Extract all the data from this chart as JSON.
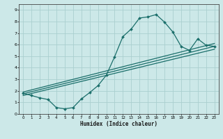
{
  "xlabel": "Humidex (Indice chaleur)",
  "bg_color": "#cce8e8",
  "grid_color": "#aacfcf",
  "line_color": "#1a6e6a",
  "xlim": [
    -0.5,
    23.5
  ],
  "ylim": [
    0,
    9.5
  ],
  "xticks": [
    0,
    1,
    2,
    3,
    4,
    5,
    6,
    7,
    8,
    9,
    10,
    11,
    12,
    13,
    14,
    15,
    16,
    17,
    18,
    19,
    20,
    21,
    22,
    23
  ],
  "yticks": [
    0,
    1,
    2,
    3,
    4,
    5,
    6,
    7,
    8,
    9
  ],
  "curve_x": [
    0,
    1,
    2,
    3,
    4,
    5,
    6,
    7,
    8,
    9,
    10,
    11,
    12,
    13,
    14,
    15,
    16,
    17,
    18,
    19,
    20,
    21,
    22,
    23
  ],
  "curve_y": [
    1.8,
    1.6,
    1.4,
    1.25,
    0.55,
    0.45,
    0.55,
    1.3,
    1.85,
    2.45,
    3.35,
    4.95,
    6.7,
    7.35,
    8.3,
    8.4,
    8.6,
    7.95,
    7.1,
    5.85,
    5.5,
    6.5,
    5.95,
    5.85
  ],
  "line1_x": [
    0,
    23
  ],
  "line1_y": [
    1.9,
    6.1
  ],
  "line2_x": [
    0,
    23
  ],
  "line2_y": [
    1.75,
    5.85
  ],
  "line3_x": [
    0,
    23
  ],
  "line3_y": [
    1.6,
    5.6
  ]
}
